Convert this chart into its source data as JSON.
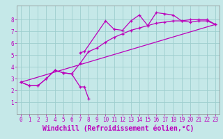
{
  "title": "",
  "xlabel": "Windchill (Refroidissement éolien,°C)",
  "xlim": [
    -0.5,
    23.5
  ],
  "ylim": [
    0,
    9.2
  ],
  "xticks": [
    0,
    1,
    2,
    3,
    4,
    5,
    6,
    7,
    8,
    9,
    10,
    11,
    12,
    13,
    14,
    15,
    16,
    17,
    18,
    19,
    20,
    21,
    22,
    23
  ],
  "yticks": [
    1,
    2,
    3,
    4,
    5,
    6,
    7,
    8
  ],
  "bg_color": "#c5e8e8",
  "grid_color": "#9ecece",
  "line_color": "#bb00bb",
  "line1_x": [
    0,
    1,
    2,
    3,
    4,
    5,
    6,
    7,
    7.5,
    8
  ],
  "line1_y": [
    2.7,
    2.4,
    2.4,
    3.0,
    3.7,
    3.5,
    3.4,
    2.3,
    2.3,
    1.3
  ],
  "line2_x": [
    7,
    7.5,
    10,
    11,
    12,
    13,
    14,
    15,
    16,
    17,
    18,
    19,
    20,
    21,
    22,
    23
  ],
  "line2_y": [
    5.2,
    5.3,
    7.9,
    7.2,
    7.1,
    7.9,
    8.4,
    7.5,
    8.6,
    8.5,
    8.4,
    7.9,
    7.8,
    7.9,
    7.9,
    7.6
  ],
  "line3_x": [
    0,
    1,
    2,
    3,
    4,
    5,
    6,
    7,
    8,
    9,
    10,
    11,
    12,
    13,
    14,
    15,
    16,
    17,
    18,
    19,
    20,
    21,
    22,
    23
  ],
  "line3_y": [
    2.7,
    2.4,
    2.4,
    3.0,
    3.7,
    3.5,
    3.4,
    4.3,
    5.3,
    5.6,
    6.1,
    6.5,
    6.8,
    7.1,
    7.3,
    7.5,
    7.7,
    7.8,
    7.9,
    7.9,
    8.0,
    8.0,
    8.0,
    7.6
  ],
  "line4_x": [
    0,
    23
  ],
  "line4_y": [
    2.7,
    7.6
  ],
  "tick_fontsize": 5.5,
  "xlabel_fontsize": 7.0
}
